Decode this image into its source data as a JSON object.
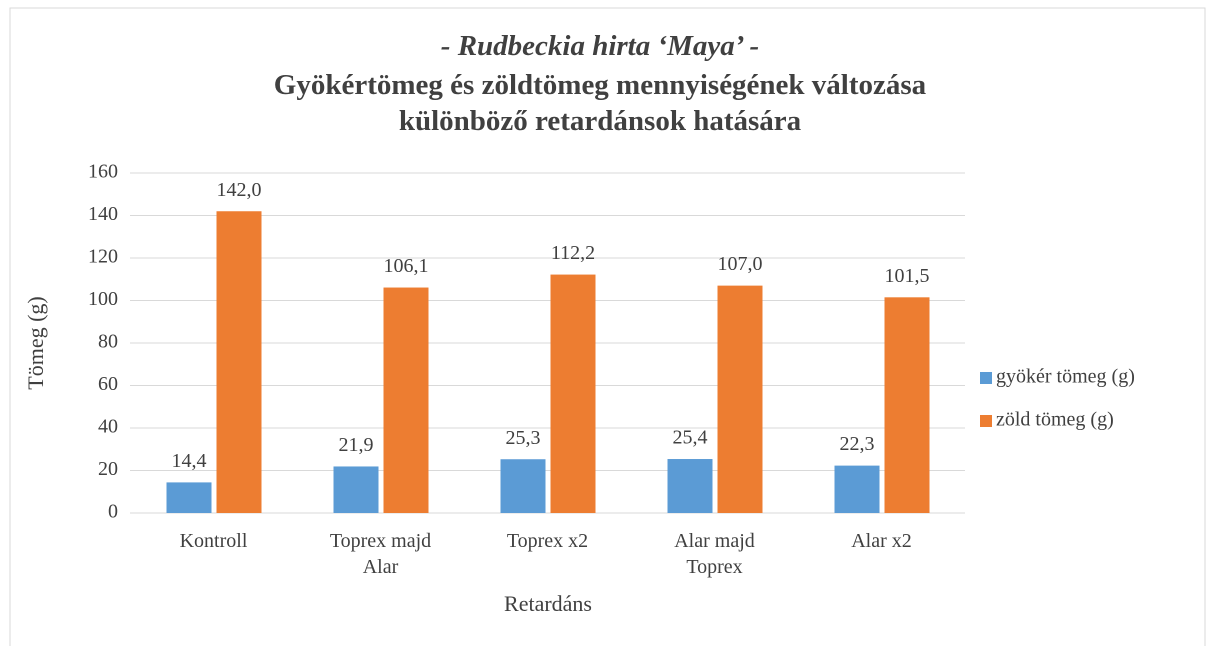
{
  "chart_data": {
    "type": "bar",
    "title": "- Rudbeckia hirta ‘Maya’ -",
    "subtitle": "Gyökértömeg és zöldtömeg mennyiségének változása különböző retardánsok hatására",
    "x_label": "Retardáns",
    "y_label": "Tömeg (g)",
    "categories": [
      "Kontroll",
      "Toprex majd Alar",
      "Toprex x2",
      "Alar majd Toprex",
      "Alar x2"
    ],
    "series": [
      {
        "name": "gyökér tömeg (g)",
        "color": "#5b9bd5",
        "values": [
          14.4,
          21.9,
          25.3,
          25.4,
          22.3
        ],
        "value_labels": [
          "14,4",
          "21,9",
          "25,3",
          "25,4",
          "22,3"
        ]
      },
      {
        "name": "zöld tömeg (g)",
        "color": "#ed7d31",
        "values": [
          142.0,
          106.1,
          112.2,
          107.0,
          101.5
        ],
        "value_labels": [
          "142,0",
          "106,1",
          "112,2",
          "107,0",
          "101,5"
        ]
      }
    ],
    "ylim": [
      0,
      160
    ],
    "yticks": [
      0,
      20,
      40,
      60,
      80,
      100,
      120,
      140,
      160
    ],
    "grid": true,
    "legend": "right"
  }
}
